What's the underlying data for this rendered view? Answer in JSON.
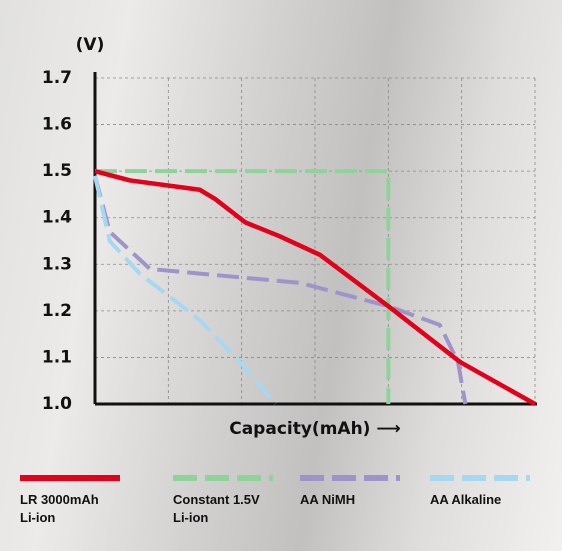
{
  "chart_data": {
    "type": "line",
    "y_label": "(V)",
    "x_label": "Capacity(mAh) ⟶",
    "xlim": [
      0,
      6
    ],
    "xticks": [
      0,
      1,
      2,
      3,
      4,
      5,
      6
    ],
    "ylim": [
      1.0,
      1.7
    ],
    "yticks": [
      {
        "value": 1.0,
        "label": "1.0"
      },
      1.1,
      1.2,
      1.3,
      1.4,
      1.5,
      1.6,
      1.7
    ],
    "grid": true,
    "series": [
      {
        "name": "LR 3000mAh Li-ion",
        "color": "#e2001a",
        "dashed": false,
        "x": [
          0,
          0.48,
          1.43,
          1.64,
          2.05,
          2.52,
          3.07,
          4.0,
          4.98,
          6.0
        ],
        "values": [
          1.5,
          1.48,
          1.46,
          1.44,
          1.39,
          1.36,
          1.32,
          1.21,
          1.09,
          1.0
        ]
      },
      {
        "name": "Constant 1.5V Li-ion",
        "color": "#8fd39a",
        "dashed": true,
        "x": [
          0,
          4,
          4
        ],
        "values": [
          1.5,
          1.5,
          1.0
        ]
      },
      {
        "name": "AA NiMH",
        "color": "#9d95c9",
        "dashed": true,
        "x": [
          0,
          0.2,
          0.75,
          1.43,
          2.8,
          4.0,
          4.7,
          4.95,
          5.05
        ],
        "values": [
          1.49,
          1.37,
          1.29,
          1.28,
          1.26,
          1.21,
          1.17,
          1.09,
          1.0
        ]
      },
      {
        "name": "AA Alkaline",
        "color": "#a6d8f2",
        "dashed": true,
        "x": [
          0,
          0.2,
          0.61,
          1.43,
          1.98,
          2.46
        ],
        "values": [
          1.49,
          1.35,
          1.28,
          1.18,
          1.09,
          1.0
        ]
      }
    ]
  }
}
